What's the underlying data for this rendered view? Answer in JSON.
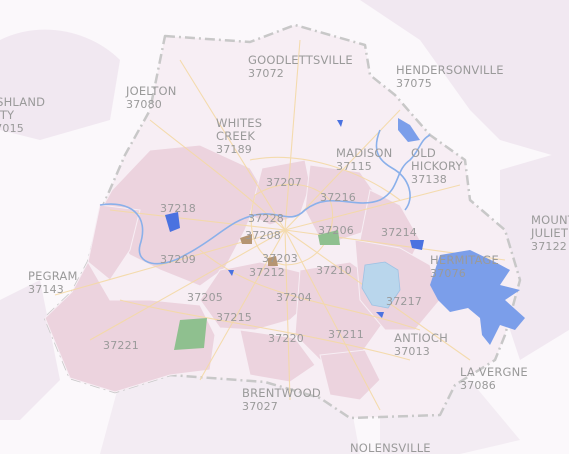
{
  "map": {
    "colors": {
      "background": "#fbf8fb",
      "outside_region": "#f1e8f1",
      "county_fill": "#f7eef4",
      "zip_fill": "#ecd3de",
      "water": "#7b9eea",
      "lake_light": "#b9d6ec",
      "park": "#8fc08f",
      "road": "#f4d9a6",
      "boundary": "#c8c8c8",
      "label": "#9a9a9a"
    },
    "places": [
      {
        "name": "GOODLETTSVILLE",
        "zip": "37072"
      },
      {
        "name": "HENDERSONVILLE",
        "zip": "37075"
      },
      {
        "name": "JOELTON",
        "zip": "37080"
      },
      {
        "name": "ASHLAND\nCITY",
        "zip": "37015"
      },
      {
        "name": "WHITES\nCREEK",
        "zip": "37189"
      },
      {
        "name": "MADISON",
        "zip": "37115"
      },
      {
        "name": "OLD\nHICKORY",
        "zip": "37138"
      },
      {
        "name": "MOUNT\nJULIET",
        "zip": "37122"
      },
      {
        "name": "HERMITAGE",
        "zip": "37076"
      },
      {
        "name": "PEGRAM",
        "zip": "37143"
      },
      {
        "name": "ANTIOCH",
        "zip": "37013"
      },
      {
        "name": "LA VERGNE",
        "zip": "37086"
      },
      {
        "name": "BRENTWOOD",
        "zip": "37027"
      },
      {
        "name": "NOLENSVILLE",
        "zip": ""
      }
    ],
    "zips": [
      "37207",
      "37216",
      "37218",
      "37228",
      "37208",
      "37206",
      "37214",
      "37209",
      "37203",
      "37210",
      "37212",
      "37205",
      "37204",
      "37217",
      "37215",
      "37220",
      "37211",
      "37221"
    ]
  }
}
